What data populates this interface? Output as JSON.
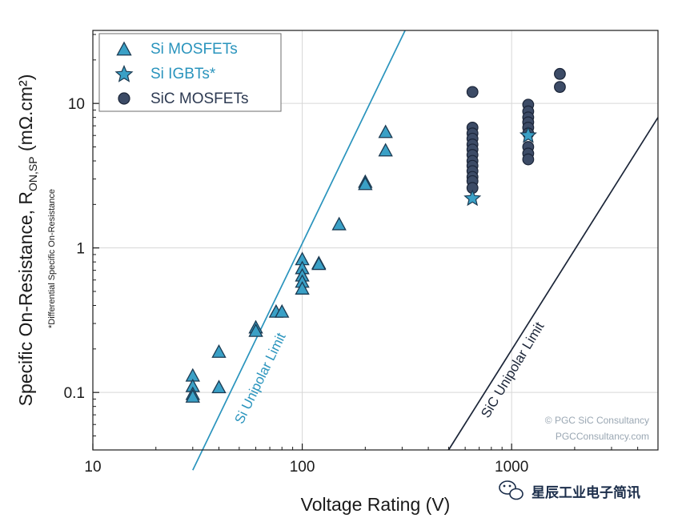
{
  "chart_data": {
    "type": "scatter",
    "x_scale": "log",
    "y_scale": "log",
    "xlim": [
      10,
      5000
    ],
    "ylim": [
      0.04,
      32
    ],
    "grid": true,
    "legend_position": "top-left",
    "xlabel": "Voltage Rating (V)",
    "ylabel_main": "Specific On-Resistance, R",
    "ylabel_sub": "ON,SP",
    "ylabel_unit": " (mΩ.cm²)",
    "y_note": "*Differential Specific On-Resistance",
    "x_ticks": [
      {
        "value": 10,
        "label": "10"
      },
      {
        "value": 100,
        "label": "100"
      },
      {
        "value": 1000,
        "label": "1000"
      }
    ],
    "y_ticks": [
      {
        "value": 0.1,
        "label": "0.1"
      },
      {
        "value": 1,
        "label": "1"
      },
      {
        "value": 10,
        "label": "10"
      }
    ],
    "colors": {
      "si": "#3aa0c6",
      "si_stroke": "#1b3a52",
      "sic": "#3c4b66",
      "sic_stroke": "#1b2538",
      "si_limit": "#2a94bd",
      "sic_limit": "#1b2538"
    },
    "series": [
      {
        "name": "Si MOSFETs",
        "marker": "triangle",
        "points": [
          [
            30,
            0.13
          ],
          [
            30,
            0.11
          ],
          [
            30,
            0.097
          ],
          [
            30,
            0.093
          ],
          [
            40,
            0.19
          ],
          [
            40,
            0.108
          ],
          [
            60,
            0.28
          ],
          [
            60,
            0.265
          ],
          [
            75,
            0.36
          ],
          [
            80,
            0.36
          ],
          [
            100,
            0.83
          ],
          [
            100,
            0.72
          ],
          [
            100,
            0.64
          ],
          [
            100,
            0.58
          ],
          [
            100,
            0.52
          ],
          [
            120,
            0.78
          ],
          [
            120,
            0.77
          ],
          [
            150,
            1.45
          ],
          [
            200,
            2.85
          ],
          [
            200,
            2.75
          ],
          [
            250,
            6.3
          ],
          [
            250,
            4.7
          ]
        ]
      },
      {
        "name": "Si IGBTs*",
        "marker": "star",
        "points": [
          [
            650,
            2.2
          ],
          [
            1200,
            6.0
          ]
        ]
      },
      {
        "name": "SiC MOSFETs",
        "marker": "circle",
        "points": [
          [
            650,
            12
          ],
          [
            650,
            6.8
          ],
          [
            650,
            6.2
          ],
          [
            650,
            5.7
          ],
          [
            650,
            5.2
          ],
          [
            650,
            4.8
          ],
          [
            650,
            4.4
          ],
          [
            650,
            4.0
          ],
          [
            650,
            3.7
          ],
          [
            650,
            3.4
          ],
          [
            650,
            3.1
          ],
          [
            650,
            2.9
          ],
          [
            650,
            2.6
          ],
          [
            1200,
            9.8
          ],
          [
            1200,
            8.8
          ],
          [
            1200,
            8.0
          ],
          [
            1200,
            7.4
          ],
          [
            1200,
            6.8
          ],
          [
            1200,
            6.2
          ],
          [
            1200,
            5.0
          ],
          [
            1200,
            4.5
          ],
          [
            1200,
            4.1
          ],
          [
            1700,
            16
          ],
          [
            1700,
            13
          ]
        ]
      }
    ],
    "lines": [
      {
        "name": "Si Unipolar Limit",
        "label": "Si Unipolar Limit",
        "x": [
          30,
          310
        ],
        "y": [
          0.029,
          32
        ]
      },
      {
        "name": "SiC Unipolar Limit",
        "label": "SiC Unipolar Limit",
        "x": [
          500,
          5000
        ],
        "y": [
          0.04,
          8
        ]
      }
    ],
    "credits": [
      "© PGC SiC Consultancy",
      "PGCConsultancy.com"
    ]
  },
  "watermark": {
    "text": "星辰工业电子简讯"
  }
}
